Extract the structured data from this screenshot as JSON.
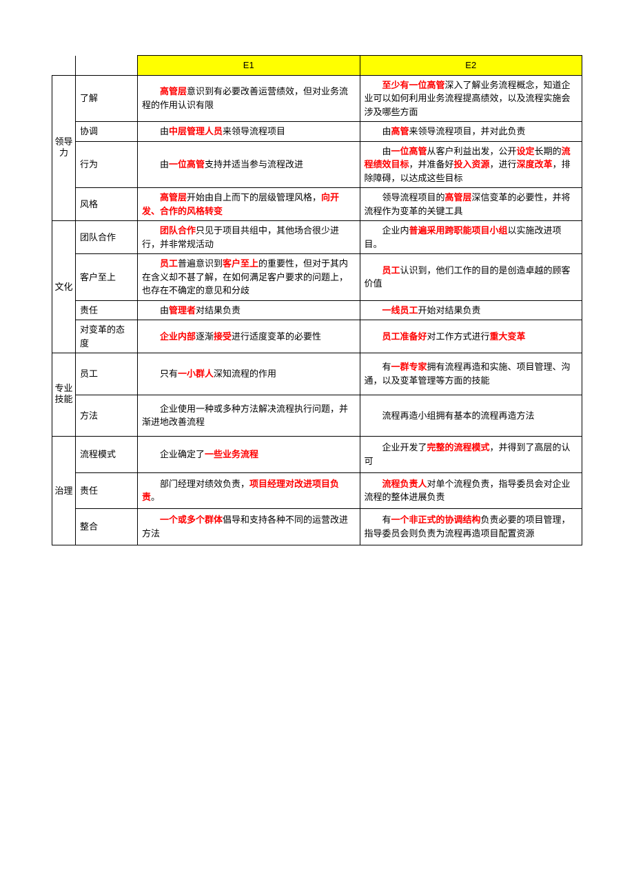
{
  "headers": {
    "e1": "E1",
    "e2": "E2"
  },
  "categories": {
    "leadership": "领导力",
    "culture": "文化",
    "skills": "专业技能",
    "governance": "治理"
  },
  "rows": {
    "understand": {
      "sub": "了解",
      "e1": [
        {
          "t": "高管层",
          "h": 1
        },
        {
          "t": "意识到有必要改善运营绩效，但对业务流程的作用认识有限"
        }
      ],
      "e2": [
        {
          "t": "至少有一位高管",
          "h": 1
        },
        {
          "t": "深入了解业务流程概念，知道企业可以如何利用业务流程提高绩效，以及流程实施会涉及哪些方面"
        }
      ]
    },
    "coord": {
      "sub": "协调",
      "e1": [
        {
          "t": "由"
        },
        {
          "t": "中层管理人员",
          "h": 1
        },
        {
          "t": "来领导流程项目"
        }
      ],
      "e2": [
        {
          "t": "由"
        },
        {
          "t": "高管",
          "h": 1
        },
        {
          "t": "来领导流程项目，并对此负责"
        }
      ]
    },
    "behavior": {
      "sub": "行为",
      "e1": [
        {
          "t": "由"
        },
        {
          "t": "一位高管",
          "h": 1
        },
        {
          "t": "支持并适当参与流程改进"
        }
      ],
      "e2": [
        {
          "t": "由"
        },
        {
          "t": "一位高管",
          "h": 1
        },
        {
          "t": "从客户利益出发，公开"
        },
        {
          "t": "设定",
          "h": 1
        },
        {
          "t": "长期的"
        },
        {
          "t": "流程绩效目标",
          "h": 1
        },
        {
          "t": "，并准备好"
        },
        {
          "t": "投入资源",
          "h": 1
        },
        {
          "t": "，进行"
        },
        {
          "t": "深度改革",
          "h": 1
        },
        {
          "t": "，排除障碍，以达成这些目标"
        }
      ]
    },
    "style": {
      "sub": "风格",
      "e1": [
        {
          "t": "高管层",
          "h": 1
        },
        {
          "t": "开始由自上而下的层级管理风格，"
        },
        {
          "t": "向开发、合作的风格转变",
          "h": 1
        }
      ],
      "e2": [
        {
          "t": "领导流程项目的"
        },
        {
          "t": "高管层",
          "h": 1
        },
        {
          "t": "深信变革的必要性，并将流程作为变革的关键工具"
        }
      ]
    },
    "team": {
      "sub": "团队合作",
      "e1": [
        {
          "t": "团队合作",
          "h": 1
        },
        {
          "t": "只见于项目共组中，其他场合很少进行，并非常规活动"
        }
      ],
      "e2": [
        {
          "t": "企业内"
        },
        {
          "t": "普遍采用跨职能项目小组",
          "h": 1
        },
        {
          "t": "以实施改进项目。"
        }
      ]
    },
    "customer": {
      "sub": "客户至上",
      "e1": [
        {
          "t": "员工",
          "h": 1
        },
        {
          "t": "普遍意识到"
        },
        {
          "t": "客户至上",
          "h": 1
        },
        {
          "t": "的重要性，但对于其内在含义却不甚了解，在如何满足客户要求的问题上，也存在不确定的意见和分歧"
        }
      ],
      "e2": [
        {
          "t": "员工",
          "h": 1
        },
        {
          "t": "认识到，他们工作的目的是创造卓越的顾客价值"
        }
      ]
    },
    "resp1": {
      "sub": "责任",
      "e1": [
        {
          "t": "由"
        },
        {
          "t": "管理者",
          "h": 1
        },
        {
          "t": "对结果负责"
        }
      ],
      "e2": [
        {
          "t": "一线员工",
          "h": 1
        },
        {
          "t": "开始对结果负责"
        }
      ]
    },
    "attitude": {
      "sub": "对变革的态度",
      "e1": [
        {
          "t": "企业内部",
          "h": 1
        },
        {
          "t": "逐渐"
        },
        {
          "t": "接受",
          "h": 1
        },
        {
          "t": "进行适度变革的必要性"
        }
      ],
      "e2": [
        {
          "t": "员工准备好",
          "h": 1
        },
        {
          "t": "对工作方式进行"
        },
        {
          "t": "重大变革",
          "h": 1
        }
      ]
    },
    "staff": {
      "sub": "员工",
      "e1": [
        {
          "t": "只有"
        },
        {
          "t": "一小群人",
          "h": 1
        },
        {
          "t": "深知流程的作用"
        }
      ],
      "e2": [
        {
          "t": "有"
        },
        {
          "t": "一群专家",
          "h": 1
        },
        {
          "t": "拥有流程再造和实施、项目管理、沟通，以及变革管理等方面的技能"
        }
      ]
    },
    "method": {
      "sub": "方法",
      "e1": [
        {
          "t": "企业使用一种或多种方法解决流程执行问题，并渐进地改善流程"
        }
      ],
      "e2": [
        {
          "t": "流程再造小组拥有基本的流程再造方法"
        }
      ]
    },
    "model": {
      "sub": "流程模式",
      "e1": [
        {
          "t": "企业确定了"
        },
        {
          "t": "一些业务流程",
          "h": 1
        }
      ],
      "e2": [
        {
          "t": "企业开发了"
        },
        {
          "t": "完整的流程模式",
          "h": 1
        },
        {
          "t": "，并得到了高层的认可"
        }
      ]
    },
    "resp2": {
      "sub": "责任",
      "e1": [
        {
          "t": "部门经理对绩效负责，"
        },
        {
          "t": "项目经理对改进项目负责",
          "h": 1
        },
        {
          "t": "。"
        }
      ],
      "e2": [
        {
          "t": "流程负责人",
          "h": 1
        },
        {
          "t": "对单个流程负责，指导委员会对企业流程的整体进展负责"
        }
      ]
    },
    "integrate": {
      "sub": "整合",
      "e1": [
        {
          "t": "一个或多个群体",
          "h": 1
        },
        {
          "t": "倡导和支持各种不同的运营改进方法"
        }
      ],
      "e2": [
        {
          "t": "有"
        },
        {
          "t": "一个非正式的协调结构",
          "h": 1
        },
        {
          "t": "负责必要的项目管理，指导委员会则负责为流程再造项目配置资源"
        }
      ]
    }
  },
  "style": {
    "highlight_color": "#ff0000",
    "header_bg": "#ffff00",
    "border_color": "#000000",
    "text_color": "#000000",
    "background": "#ffffff",
    "font_size": 13
  }
}
